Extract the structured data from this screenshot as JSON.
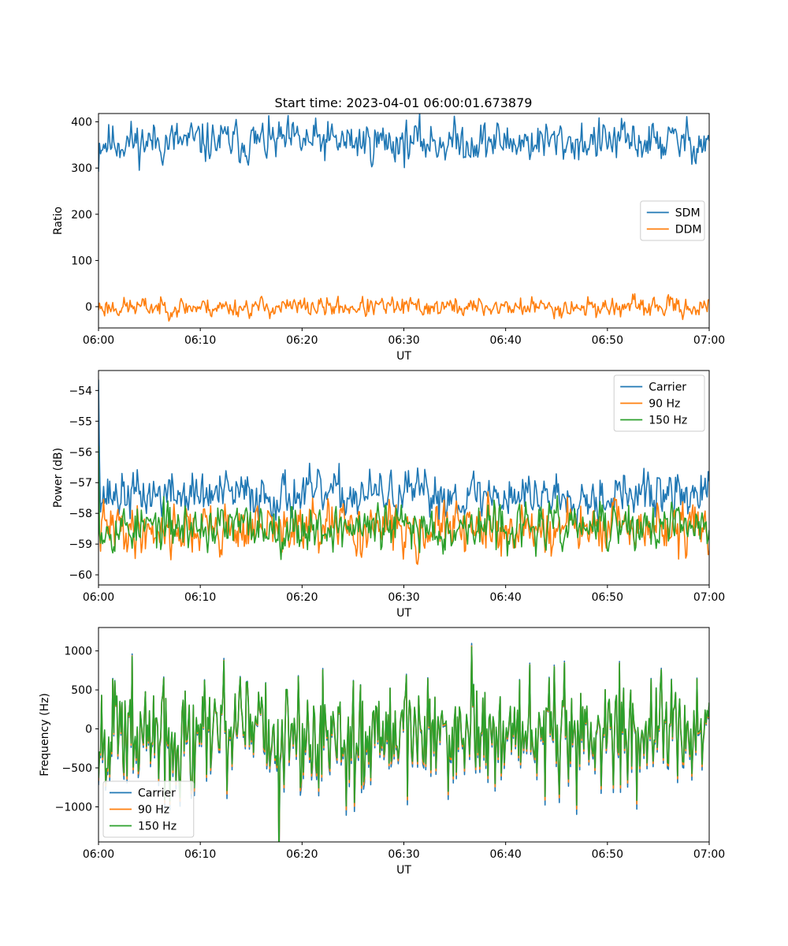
{
  "figure": {
    "title": "Start time: 2023-04-01 06:00:01.673879"
  },
  "chart_data": [
    {
      "type": "line",
      "xlabel": "UT",
      "ylabel": "Ratio",
      "xlim": [
        0,
        60
      ],
      "ylim": [
        -46,
        418
      ],
      "xticks": [
        0,
        10,
        20,
        30,
        40,
        50,
        60
      ],
      "xticklabels": [
        "06:00",
        "06:10",
        "06:20",
        "06:30",
        "06:40",
        "06:50",
        "07:00"
      ],
      "yticks": [
        0,
        100,
        200,
        300,
        400
      ],
      "yticklabels": [
        "0",
        "100",
        "200",
        "300",
        "400"
      ],
      "legend": {
        "position": "center-right"
      },
      "series": [
        {
          "name": "SDM",
          "color": "#1f77b4",
          "gen": {
            "n": 600,
            "base": 357,
            "amp": 30,
            "seed": 11,
            "start": 292
          }
        },
        {
          "name": "DDM",
          "color": "#ff7f0e",
          "gen": {
            "n": 600,
            "base": -1,
            "amp": 14,
            "seed": 23
          }
        }
      ]
    },
    {
      "type": "line",
      "xlabel": "UT",
      "ylabel": "Power (dB)",
      "xlim": [
        0,
        60
      ],
      "ylim": [
        -60.33,
        -53.35
      ],
      "xticks": [
        0,
        10,
        20,
        30,
        40,
        50,
        60
      ],
      "xticklabels": [
        "06:00",
        "06:10",
        "06:20",
        "06:30",
        "06:40",
        "06:50",
        "07:00"
      ],
      "yticks": [
        -60,
        -59,
        -58,
        -57,
        -56,
        -55,
        -54
      ],
      "yticklabels": [
        "−60",
        "−59",
        "−58",
        "−57",
        "−56",
        "−55",
        "−54"
      ],
      "legend": {
        "position": "top-right"
      },
      "series": [
        {
          "name": "Carrier",
          "color": "#1f77b4",
          "gen": {
            "n": 600,
            "base": -57.4,
            "amp": 0.5,
            "seed": 37,
            "start": -53.65,
            "start2": -56.3
          }
        },
        {
          "name": "90 Hz",
          "color": "#ff7f0e",
          "gen": {
            "n": 600,
            "base": -58.5,
            "amp": 0.55,
            "seed": 41,
            "start": -58.1
          }
        },
        {
          "name": "150 Hz",
          "color": "#2ca02c",
          "gen": {
            "n": 600,
            "base": -58.45,
            "amp": 0.5,
            "seed": 53,
            "start": -55.8
          }
        }
      ]
    },
    {
      "type": "line",
      "xlabel": "UT",
      "ylabel": "Frequency (Hz)",
      "xlim": [
        0,
        60
      ],
      "ylim": [
        -1450,
        1300
      ],
      "xticks": [
        0,
        10,
        20,
        30,
        40,
        50,
        60
      ],
      "xticklabels": [
        "06:00",
        "06:10",
        "06:20",
        "06:30",
        "06:40",
        "06:50",
        "07:00"
      ],
      "yticks": [
        -1000,
        -500,
        0,
        500,
        1000
      ],
      "yticklabels": [
        "−1000",
        "−500",
        "0",
        "500",
        "1000"
      ],
      "legend": {
        "position": "bottom-left"
      },
      "series": [
        {
          "name": "Carrier",
          "color": "#1f77b4",
          "gen": {
            "n": 600,
            "base": -40,
            "amp": 480,
            "seed": 67,
            "spiky": true,
            "scale": 1.08,
            "offset": -40
          }
        },
        {
          "name": "90 Hz",
          "color": "#ff7f0e",
          "gen": {
            "n": 600,
            "base": -40,
            "amp": 480,
            "seed": 67,
            "spiky": true,
            "scale": 1.03,
            "offset": -20
          }
        },
        {
          "name": "150 Hz",
          "color": "#2ca02c",
          "gen": {
            "n": 600,
            "base": -40,
            "amp": 480,
            "seed": 67,
            "spiky": true,
            "scale": 1.0,
            "offset": 0
          }
        }
      ]
    }
  ]
}
